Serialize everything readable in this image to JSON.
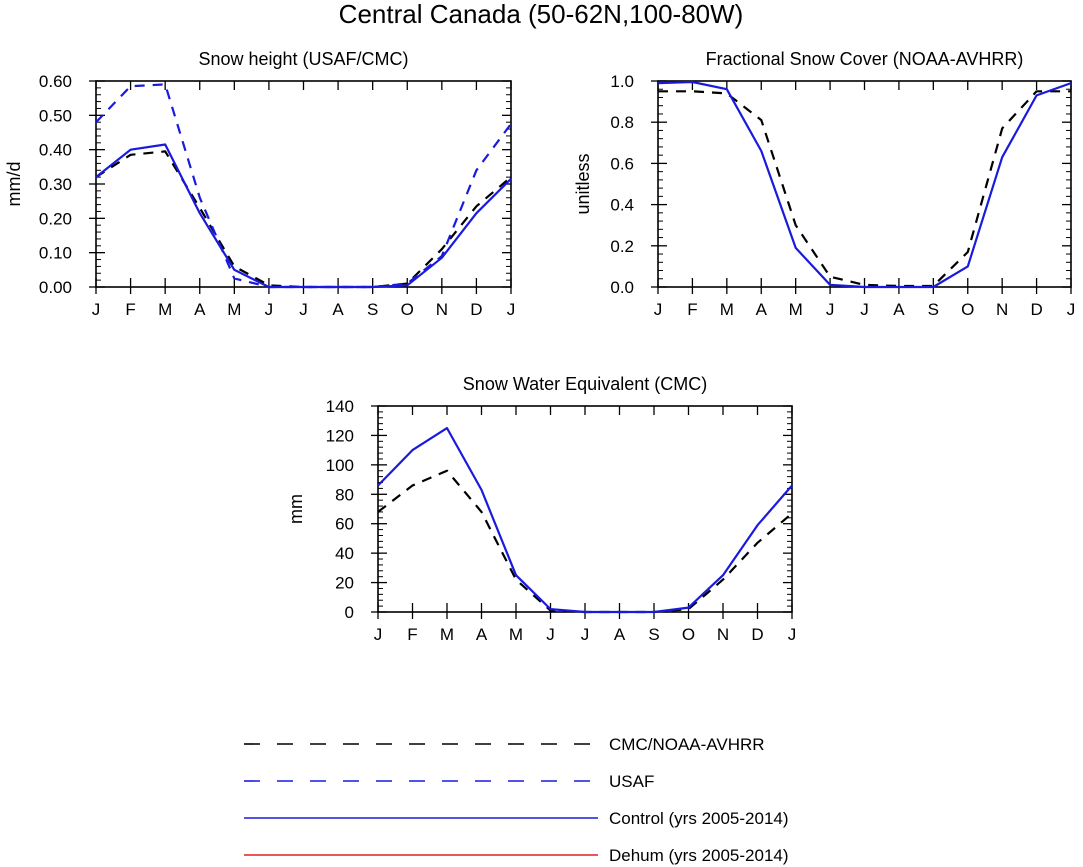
{
  "figure": {
    "title": "Central Canada (50-62N,100-80W)"
  },
  "chart_data": [
    {
      "type": "line",
      "title": "Snow height (USAF/CMC)",
      "xlabel": "",
      "ylabel": "mm/d",
      "categories": [
        "J",
        "F",
        "M",
        "A",
        "M",
        "J",
        "J",
        "A",
        "S",
        "O",
        "N",
        "D",
        "J"
      ],
      "ylim": [
        0,
        0.6
      ],
      "yticks": [
        0,
        0.1,
        0.2,
        0.3,
        0.4,
        0.5,
        0.6
      ],
      "yticklabels": [
        "0.00",
        "0.10",
        "0.20",
        "0.30",
        "0.40",
        "0.50",
        "0.60"
      ],
      "series": [
        {
          "name": "CMC/NOAA-AVHRR",
          "color": "#000000",
          "style": "dashed",
          "values": [
            0.32,
            0.385,
            0.395,
            0.23,
            0.06,
            0.005,
            0.0,
            0.0,
            0.0,
            0.01,
            0.11,
            0.235,
            0.32
          ]
        },
        {
          "name": "USAF",
          "color": "#1a1add",
          "style": "dashed",
          "values": [
            0.48,
            0.585,
            0.59,
            0.26,
            0.025,
            0.0,
            0.0,
            0.0,
            0.0,
            0.01,
            0.09,
            0.34,
            0.475
          ]
        },
        {
          "name": "Control (yrs 2005-2014)",
          "color": "#1a1add",
          "style": "solid",
          "values": [
            0.32,
            0.4,
            0.415,
            0.215,
            0.05,
            0.0,
            0.0,
            0.0,
            0.0,
            0.005,
            0.085,
            0.215,
            0.315
          ]
        }
      ]
    },
    {
      "type": "line",
      "title": "Fractional Snow Cover (NOAA-AVHRR)",
      "xlabel": "",
      "ylabel": "unitless",
      "categories": [
        "J",
        "F",
        "M",
        "A",
        "M",
        "J",
        "J",
        "A",
        "S",
        "O",
        "N",
        "D",
        "J"
      ],
      "ylim": [
        0,
        1.0
      ],
      "yticks": [
        0,
        0.2,
        0.4,
        0.6,
        0.8,
        1.0
      ],
      "yticklabels": [
        "0.0",
        "0.2",
        "0.4",
        "0.6",
        "0.8",
        "1.0"
      ],
      "series": [
        {
          "name": "CMC/NOAA-AVHRR",
          "color": "#000000",
          "style": "dashed",
          "values": [
            0.95,
            0.95,
            0.94,
            0.81,
            0.3,
            0.05,
            0.01,
            0.005,
            0.005,
            0.17,
            0.77,
            0.95,
            0.95
          ]
        },
        {
          "name": "Control (yrs 2005-2014)",
          "color": "#1a1add",
          "style": "solid",
          "values": [
            0.99,
            0.995,
            0.96,
            0.66,
            0.19,
            0.01,
            0.0,
            0.0,
            0.0,
            0.1,
            0.63,
            0.93,
            0.99
          ]
        }
      ]
    },
    {
      "type": "line",
      "title": "Snow Water Equivalent (CMC)",
      "xlabel": "",
      "ylabel": "mm",
      "categories": [
        "J",
        "F",
        "M",
        "A",
        "M",
        "J",
        "J",
        "A",
        "S",
        "O",
        "N",
        "D",
        "J"
      ],
      "ylim": [
        0,
        140
      ],
      "yticks": [
        0,
        20,
        40,
        60,
        80,
        100,
        120,
        140
      ],
      "yticklabels": [
        "0",
        "20",
        "40",
        "60",
        "80",
        "100",
        "120",
        "140"
      ],
      "series": [
        {
          "name": "CMC/NOAA-AVHRR",
          "color": "#000000",
          "style": "dashed",
          "values": [
            68,
            86,
            96,
            68,
            22,
            1,
            0,
            0,
            0,
            2,
            22,
            47,
            67
          ]
        },
        {
          "name": "Control (yrs 2005-2014)",
          "color": "#1a1add",
          "style": "solid",
          "values": [
            86,
            110,
            125,
            83,
            25,
            2,
            0,
            0,
            0,
            3,
            25,
            59,
            86
          ]
        }
      ]
    }
  ],
  "legend": [
    {
      "label": "CMC/NOAA-AVHRR",
      "color": "#000000",
      "style": "dashed"
    },
    {
      "label": "USAF",
      "color": "#1a1add",
      "style": "dashed"
    },
    {
      "label": "Control (yrs 2005-2014)",
      "color": "#1a1add",
      "style": "solid"
    },
    {
      "label": "Dehum (yrs 2005-2014)",
      "color": "#e02020",
      "style": "solid"
    }
  ]
}
